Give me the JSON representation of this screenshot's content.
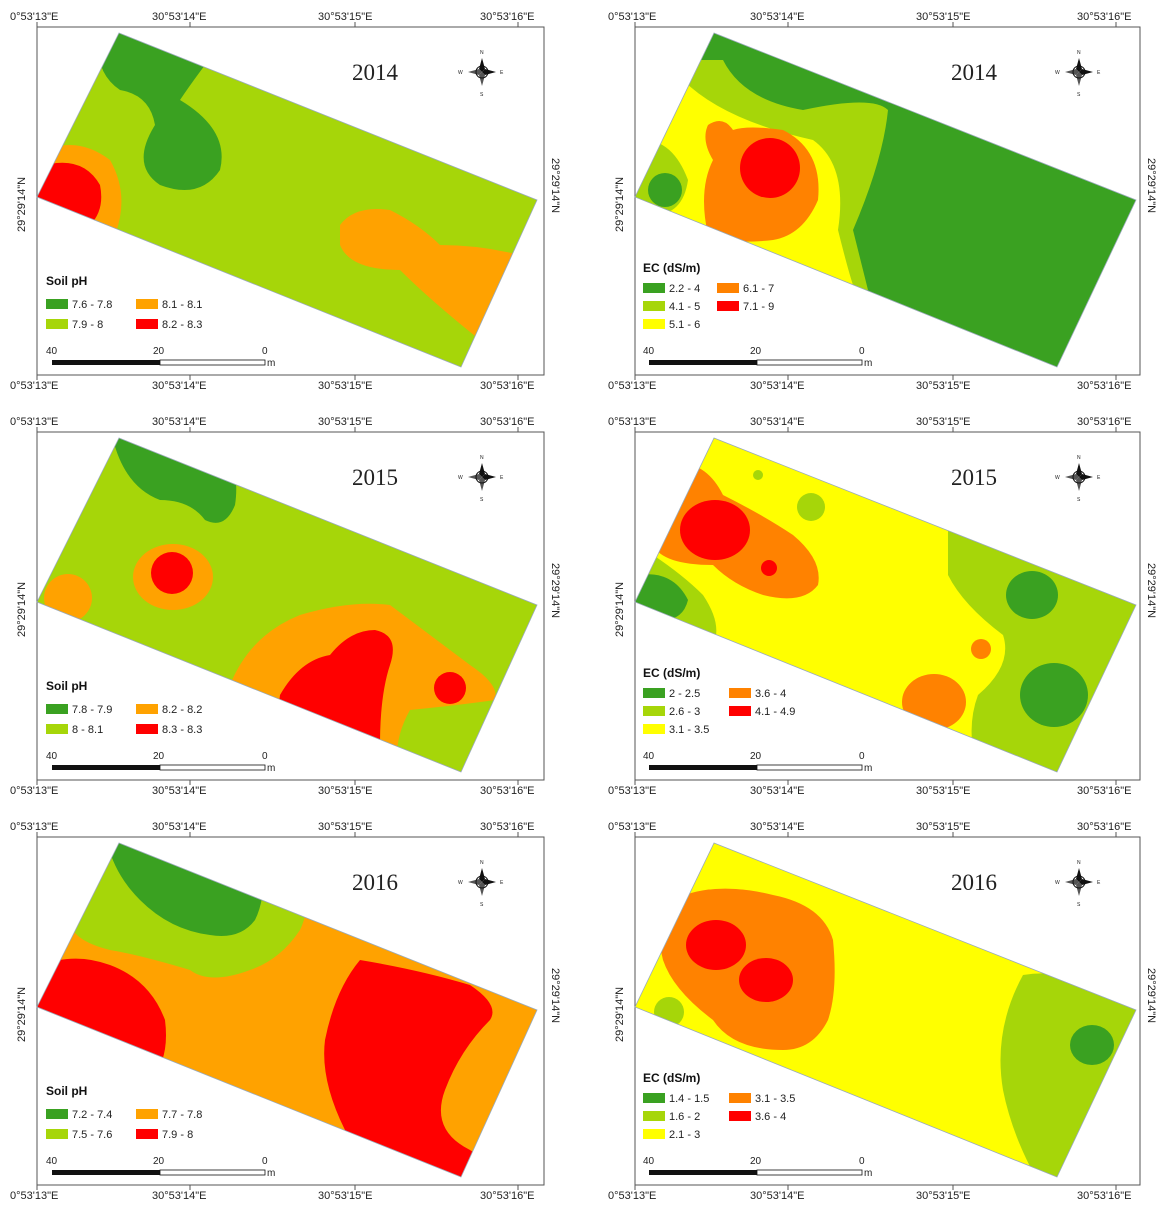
{
  "colors": {
    "dark_green": "#3aa121",
    "light_green": "#a6d609",
    "yellow": "#ffff00",
    "orange": "#ffa200",
    "dark_orange": "#ff8200",
    "red": "#ff0000"
  },
  "common": {
    "lon_labels": [
      "0°53'13\"E",
      "30°53'14\"E",
      "30°53'15\"E",
      "30°53'16\"E"
    ],
    "lat_label": "29°29'14\"N",
    "scale_labels": [
      "40",
      "20",
      "0"
    ],
    "scale_unit": "m",
    "north_arrow_letters": [
      "N",
      "S",
      "W",
      "E"
    ]
  },
  "panels": [
    {
      "year": "2014",
      "legend_title": "Soil pH",
      "legend_items": [
        {
          "label": "7.6 - 7.8",
          "color": "#3aa121"
        },
        {
          "label": "8.1 - 8.1",
          "color": "#ffa200"
        },
        {
          "label": "7.9 - 8",
          "color": "#a6d609"
        },
        {
          "label": "8.2 - 8.3",
          "color": "#ff0000"
        }
      ]
    },
    {
      "year": "2014",
      "legend_title": "EC (dS/m)",
      "legend_items": [
        {
          "label": "2.2 - 4",
          "color": "#3aa121"
        },
        {
          "label": "6.1 - 7",
          "color": "#ff8200"
        },
        {
          "label": "4.1 - 5",
          "color": "#a6d609"
        },
        {
          "label": "7.1 - 9",
          "color": "#ff0000"
        },
        {
          "label": "5.1 - 6",
          "color": "#ffff00"
        }
      ]
    },
    {
      "year": "2015",
      "legend_title": "Soil pH",
      "legend_items": [
        {
          "label": "7.8 - 7.9",
          "color": "#3aa121"
        },
        {
          "label": "8.2 - 8.2",
          "color": "#ffa200"
        },
        {
          "label": "8 - 8.1",
          "color": "#a6d609"
        },
        {
          "label": "8.3 - 8.3",
          "color": "#ff0000"
        }
      ]
    },
    {
      "year": "2015",
      "legend_title": "EC (dS/m)",
      "legend_items": [
        {
          "label": "2 - 2.5",
          "color": "#3aa121"
        },
        {
          "label": "3.6 - 4",
          "color": "#ff8200"
        },
        {
          "label": "2.6 - 3",
          "color": "#a6d609"
        },
        {
          "label": "4.1 - 4.9",
          "color": "#ff0000"
        },
        {
          "label": "3.1 - 3.5",
          "color": "#ffff00"
        }
      ]
    },
    {
      "year": "2016",
      "legend_title": "Soil pH",
      "legend_items": [
        {
          "label": "7.2 - 7.4",
          "color": "#3aa121"
        },
        {
          "label": "7.7 - 7.8",
          "color": "#ffa200"
        },
        {
          "label": "7.5 - 7.6",
          "color": "#a6d609"
        },
        {
          "label": "7.9 - 8",
          "color": "#ff0000"
        }
      ]
    },
    {
      "year": "2016",
      "legend_title": "EC (dS/m)",
      "legend_items": [
        {
          "label": "1.4 - 1.5",
          "color": "#3aa121"
        },
        {
          "label": "3.1 - 3.5",
          "color": "#ff8200"
        },
        {
          "label": "1.6 - 2",
          "color": "#a6d609"
        },
        {
          "label": "3.6 - 4",
          "color": "#ff0000"
        },
        {
          "label": "2.1 - 3",
          "color": "#ffff00"
        }
      ]
    }
  ]
}
